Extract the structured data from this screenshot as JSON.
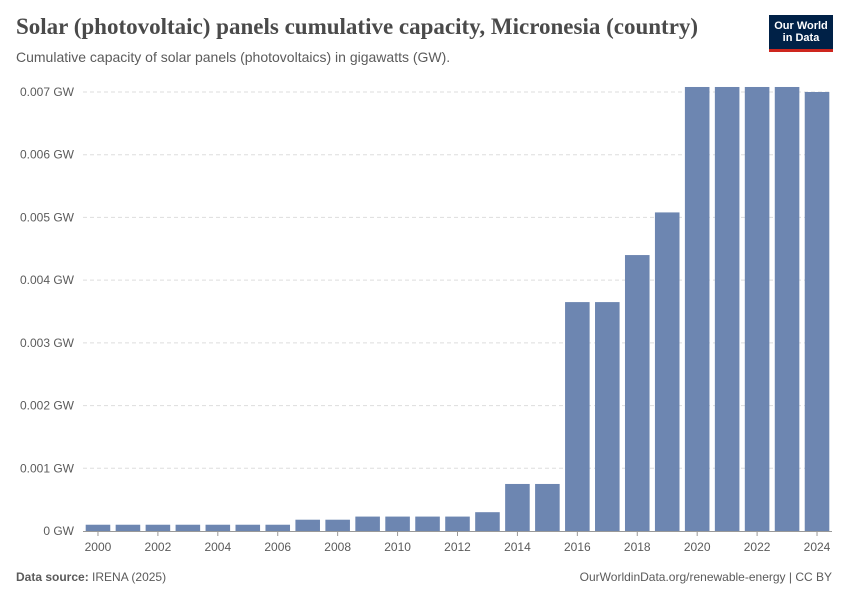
{
  "header": {
    "title": "Solar (photovoltaic) panels cumulative capacity, Micronesia (country)",
    "subtitle": "Cumulative capacity of solar panels (photovoltaics) in gigawatts (GW)."
  },
  "logo": {
    "line1": "Our World",
    "line2": "in Data"
  },
  "footer": {
    "source_label": "Data source:",
    "source_value": "IRENA (2025)",
    "link": "OurWorldinData.org/renewable-energy | CC BY"
  },
  "colors": {
    "bar": "#6d86b1",
    "grid": "#dddddd",
    "axis": "#999999",
    "brand": "#002147",
    "brand_accent": "#ce261e"
  },
  "chart_data": {
    "type": "bar",
    "title": "Solar (photovoltaic) panels cumulative capacity, Micronesia (country)",
    "ylabel": "GW",
    "unit": "GW",
    "ylim": [
      0,
      0.007
    ],
    "yticks": [
      0,
      0.001,
      0.002,
      0.003,
      0.004,
      0.005,
      0.006,
      0.007
    ],
    "ytick_labels": [
      "0 GW",
      "0.001 GW",
      "0.002 GW",
      "0.003 GW",
      "0.004 GW",
      "0.005 GW",
      "0.006 GW",
      "0.007 GW"
    ],
    "xtick_labels": [
      "2000",
      "2002",
      "2004",
      "2006",
      "2008",
      "2010",
      "2012",
      "2014",
      "2016",
      "2018",
      "2020",
      "2022",
      "2024"
    ],
    "categories": [
      "2000",
      "2001",
      "2002",
      "2003",
      "2004",
      "2005",
      "2006",
      "2007",
      "2008",
      "2009",
      "2010",
      "2011",
      "2012",
      "2013",
      "2014",
      "2015",
      "2016",
      "2017",
      "2018",
      "2019",
      "2020",
      "2021",
      "2022",
      "2023",
      "2024"
    ],
    "values": [
      0.0001,
      0.0001,
      0.0001,
      0.0001,
      0.0001,
      0.0001,
      0.0001,
      0.00018,
      0.00018,
      0.00023,
      0.00023,
      0.00023,
      0.00023,
      0.0003,
      0.00075,
      0.00075,
      0.00365,
      0.00365,
      0.0044,
      0.00508,
      0.00708,
      0.00708,
      0.00708,
      0.00708,
      0.007
    ]
  }
}
